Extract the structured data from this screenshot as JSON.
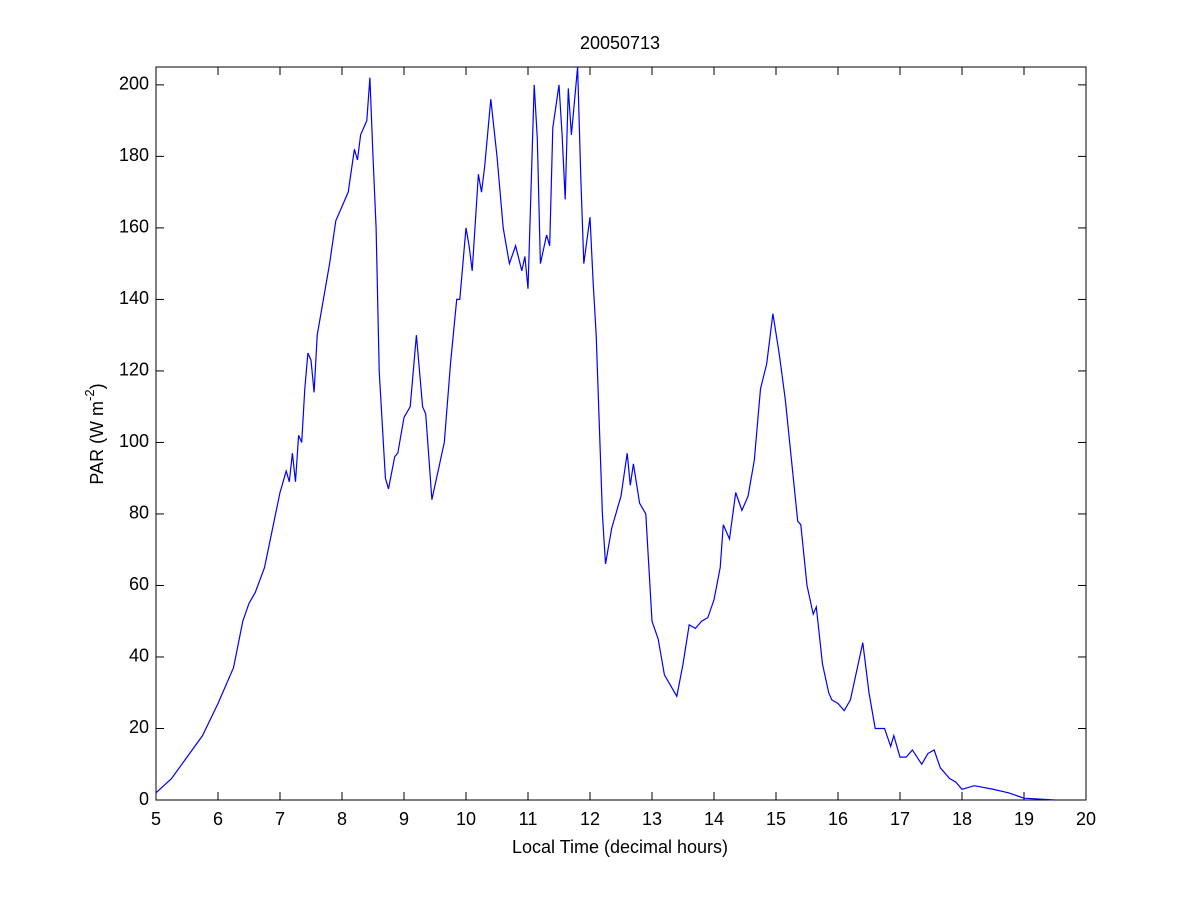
{
  "chart_data": {
    "type": "line",
    "title": "20050713",
    "xlabel": "Local Time (decimal hours)",
    "ylabel": "PAR (W m",
    "ylabel_sup": "-2",
    "ylabel_end": ")",
    "x": [
      5.0,
      5.25,
      5.5,
      5.75,
      6.0,
      6.25,
      6.4,
      6.5,
      6.6,
      6.75,
      7.0,
      7.1,
      7.15,
      7.2,
      7.25,
      7.3,
      7.35,
      7.4,
      7.45,
      7.5,
      7.55,
      7.6,
      7.7,
      7.8,
      7.9,
      8.0,
      8.1,
      8.2,
      8.25,
      8.3,
      8.4,
      8.45,
      8.5,
      8.55,
      8.6,
      8.7,
      8.75,
      8.85,
      8.9,
      9.0,
      9.1,
      9.2,
      9.3,
      9.35,
      9.45,
      9.55,
      9.65,
      9.75,
      9.85,
      9.9,
      10.0,
      10.05,
      10.1,
      10.2,
      10.25,
      10.3,
      10.4,
      10.5,
      10.6,
      10.7,
      10.8,
      10.9,
      10.95,
      11.0,
      11.1,
      11.15,
      11.2,
      11.3,
      11.35,
      11.4,
      11.5,
      11.55,
      11.6,
      11.65,
      11.7,
      11.8,
      11.85,
      11.9,
      12.0,
      12.05,
      12.1,
      12.2,
      12.25,
      12.35,
      12.5,
      12.6,
      12.65,
      12.7,
      12.8,
      12.9,
      13.0,
      13.1,
      13.2,
      13.3,
      13.4,
      13.5,
      13.6,
      13.7,
      13.8,
      13.9,
      14.0,
      14.1,
      14.15,
      14.25,
      14.35,
      14.45,
      14.55,
      14.65,
      14.75,
      14.85,
      14.95,
      15.05,
      15.15,
      15.25,
      15.35,
      15.4,
      15.5,
      15.6,
      15.65,
      15.75,
      15.85,
      15.9,
      16.0,
      16.1,
      16.2,
      16.3,
      16.4,
      16.5,
      16.6,
      16.75,
      16.85,
      16.9,
      17.0,
      17.1,
      17.2,
      17.35,
      17.45,
      17.55,
      17.65,
      17.8,
      17.9,
      18.0,
      18.2,
      18.5,
      18.75,
      19.0,
      19.5
    ],
    "series": [
      {
        "color": "#0000ff",
        "values": [
          2,
          6,
          12,
          18,
          27,
          37,
          50,
          55,
          58,
          65,
          86,
          92,
          89,
          97,
          89,
          102,
          100,
          115,
          125,
          123,
          114,
          130,
          140,
          150,
          162,
          166,
          170,
          182,
          179,
          186,
          190,
          202,
          180,
          160,
          120,
          90,
          87,
          96,
          97,
          107,
          110,
          130,
          110,
          108,
          84,
          92,
          100,
          122,
          140,
          140,
          160,
          155,
          148,
          175,
          170,
          177,
          196,
          180,
          160,
          150,
          155,
          148,
          152,
          143,
          200,
          185,
          150,
          158,
          155,
          188,
          200,
          186,
          168,
          199,
          186,
          205,
          175,
          150,
          163,
          145,
          130,
          80,
          66,
          76,
          85,
          97,
          88,
          94,
          83,
          80,
          50,
          45,
          35,
          32,
          29,
          38,
          49,
          48,
          50,
          51,
          56,
          65,
          77,
          73,
          86,
          81,
          85,
          95,
          115,
          122,
          136,
          125,
          112,
          95,
          78,
          77,
          60,
          52,
          54,
          38,
          30,
          28,
          27,
          25,
          28,
          36,
          44,
          30,
          20,
          20,
          15,
          18,
          12,
          12,
          14,
          10,
          13,
          14,
          9,
          6,
          5,
          3,
          4,
          3,
          2,
          0.5,
          0
        ]
      }
    ],
    "xlim": [
      5,
      20
    ],
    "xticks": [
      5,
      6,
      7,
      8,
      9,
      10,
      11,
      12,
      13,
      14,
      15,
      16,
      17,
      18,
      19,
      20
    ],
    "ylim": [
      0,
      205
    ],
    "yticks": [
      0,
      20,
      40,
      60,
      80,
      100,
      120,
      140,
      160,
      180,
      200
    ]
  }
}
